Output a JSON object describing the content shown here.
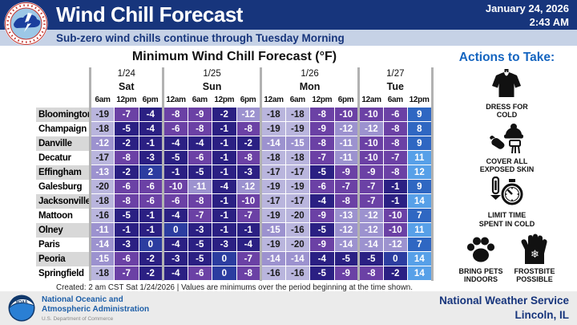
{
  "header": {
    "title": "Wind Chill Forecast",
    "date_line1": "January 24, 2026",
    "date_line2": "2:43 AM",
    "subtitle": "Sub-zero wind chills continue through Tuesday Morning",
    "bar_color": "#17357C",
    "subtitle_bg": "#C6D2E6"
  },
  "chart_data": {
    "type": "heatmap",
    "title": "Minimum Wind Chill Forecast (°F)",
    "day_groups": [
      {
        "date": "1/24",
        "day": "Sat",
        "times": [
          "6am",
          "12pm",
          "6pm"
        ]
      },
      {
        "date": "1/25",
        "day": "Sun",
        "times": [
          "12am",
          "6am",
          "12pm",
          "6pm"
        ]
      },
      {
        "date": "1/26",
        "day": "Mon",
        "times": [
          "12am",
          "6am",
          "12pm",
          "6pm"
        ]
      },
      {
        "date": "1/27",
        "day": "Tue",
        "times": [
          "12am",
          "6am",
          "12pm"
        ]
      }
    ],
    "rows": [
      {
        "city": "Bloomington",
        "values": [
          -19,
          -7,
          -4,
          -8,
          -9,
          -2,
          -12,
          -18,
          -18,
          -8,
          -10,
          -10,
          -6,
          9
        ]
      },
      {
        "city": "Champaign",
        "values": [
          -18,
          -5,
          -4,
          -6,
          -8,
          -1,
          -8,
          -19,
          -19,
          -9,
          -12,
          -12,
          -8,
          8
        ]
      },
      {
        "city": "Danville",
        "values": [
          -12,
          -2,
          -1,
          -4,
          -4,
          -1,
          -2,
          -14,
          -15,
          -8,
          -11,
          -10,
          -8,
          9
        ]
      },
      {
        "city": "Decatur",
        "values": [
          -17,
          -8,
          -3,
          -5,
          -6,
          -1,
          -8,
          -18,
          -18,
          -7,
          -11,
          -10,
          -7,
          11
        ]
      },
      {
        "city": "Effingham",
        "values": [
          -13,
          -2,
          2,
          -1,
          -5,
          -1,
          -3,
          -17,
          -17,
          -5,
          -9,
          -9,
          -8,
          12
        ]
      },
      {
        "city": "Galesburg",
        "values": [
          -20,
          -6,
          -6,
          -10,
          -11,
          -4,
          -12,
          -19,
          -19,
          -6,
          -7,
          -7,
          -1,
          9
        ]
      },
      {
        "city": "Jacksonville",
        "values": [
          -18,
          -8,
          -6,
          -6,
          -8,
          -1,
          -10,
          -17,
          -17,
          -4,
          -8,
          -7,
          -1,
          14
        ]
      },
      {
        "city": "Mattoon",
        "values": [
          -16,
          -5,
          -1,
          -4,
          -7,
          -1,
          -7,
          -19,
          -20,
          -9,
          -13,
          -12,
          -10,
          7
        ]
      },
      {
        "city": "Olney",
        "values": [
          -11,
          -1,
          -1,
          0,
          -3,
          -1,
          -1,
          -15,
          -16,
          -5,
          -12,
          -12,
          -10,
          11
        ]
      },
      {
        "city": "Paris",
        "values": [
          -14,
          -3,
          0,
          -4,
          -5,
          -3,
          -4,
          -19,
          -20,
          -9,
          -14,
          -14,
          -12,
          7
        ]
      },
      {
        "city": "Peoria",
        "values": [
          -15,
          -6,
          -2,
          -3,
          -5,
          0,
          -7,
          -14,
          -14,
          -4,
          -5,
          -5,
          0,
          14
        ]
      },
      {
        "city": "Springfield",
        "values": [
          -18,
          -7,
          -2,
          -4,
          -6,
          0,
          -8,
          -16,
          -16,
          -5,
          -9,
          -8,
          -2,
          14
        ]
      }
    ],
    "color_scale": [
      {
        "min": 10,
        "max": 99,
        "color": "#57A0E8",
        "text": "#FFFFFF"
      },
      {
        "min": 5,
        "max": 9,
        "color": "#2F67C2",
        "text": "#FFFFFF"
      },
      {
        "min": 0,
        "max": 4,
        "color": "#2C3DA0",
        "text": "#FFFFFF"
      },
      {
        "min": -5,
        "max": -1,
        "color": "#2B2083",
        "text": "#FFFFFF"
      },
      {
        "min": -10,
        "max": -6,
        "color": "#6B41A5",
        "text": "#FFFFFF"
      },
      {
        "min": -15,
        "max": -11,
        "color": "#9C92CF",
        "text": "#FFFFFF"
      },
      {
        "min": -99,
        "max": -16,
        "color": "#B9B5DD",
        "text": "#1B1B1B"
      }
    ],
    "footnote": "Created: 2 am CST Sat 1/24/2026  |  Values are minimums over the period beginning at the time shown."
  },
  "actions": {
    "title": "Actions to Take:",
    "items": [
      {
        "icon": "jacket-icon",
        "label": "DRESS FOR\nCOLD"
      },
      {
        "icon": "winter-gear-icon",
        "label": "COVER ALL\nEXPOSED SKIN"
      },
      {
        "icon": "thermometer-stopwatch-icon",
        "label": "LIMIT TIME\nSPENT IN COLD"
      },
      {
        "icon": "paw-icon",
        "label": "BRING PETS\nINDOORS"
      },
      {
        "icon": "frostbite-hand-icon",
        "label": "FROSTBITE\nPOSSIBLE"
      }
    ]
  },
  "footer": {
    "agency_line1": "National Oceanic and",
    "agency_line2": "Atmospheric Administration",
    "agency_sub": "U.S. Department of Commerce",
    "org_name": "National Weather Service",
    "org_location": "Lincoln, IL"
  }
}
